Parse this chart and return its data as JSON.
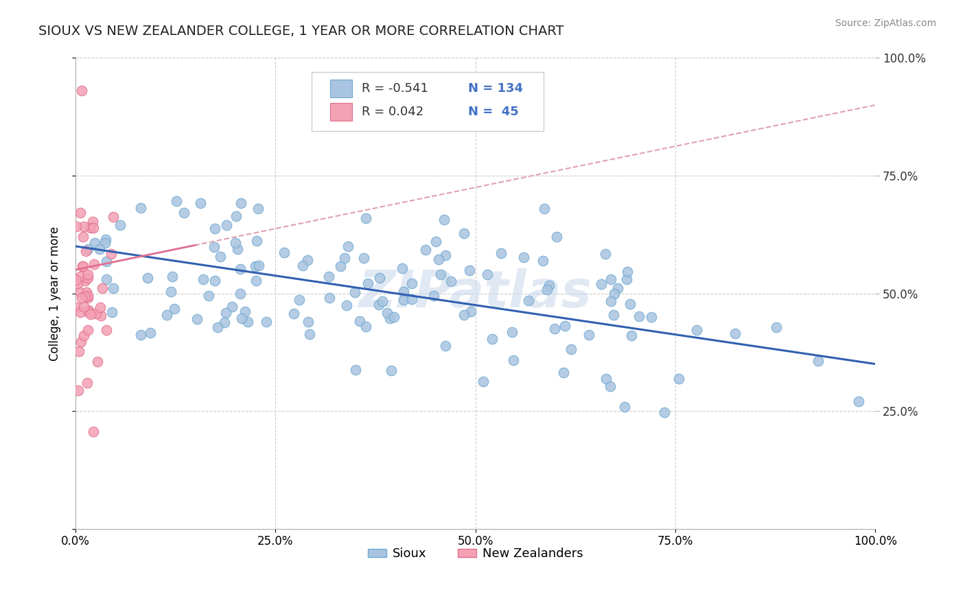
{
  "title": "SIOUX VS NEW ZEALANDER COLLEGE, 1 YEAR OR MORE CORRELATION CHART",
  "source": "Source: ZipAtlas.com",
  "ylabel": "College, 1 year or more",
  "xlim": [
    0.0,
    1.0
  ],
  "ylim": [
    0.0,
    1.0
  ],
  "grid_color": "#cccccc",
  "background_color": "#ffffff",
  "sioux_color": "#a8c4e0",
  "sioux_edge": "#6fa8d0",
  "nz_color": "#f4a0b5",
  "nz_edge": "#e0708a",
  "trend_sioux_color": "#3060b0",
  "trend_nz_solid_color": "#e07090",
  "trend_nz_dash_color": "#e0a0b0",
  "R_sioux": -0.541,
  "N_sioux": 134,
  "R_nz": 0.042,
  "N_nz": 45,
  "legend_label_sioux": "Sioux",
  "legend_label_nz": "New Zealanders",
  "watermark": "ZIPatlas"
}
